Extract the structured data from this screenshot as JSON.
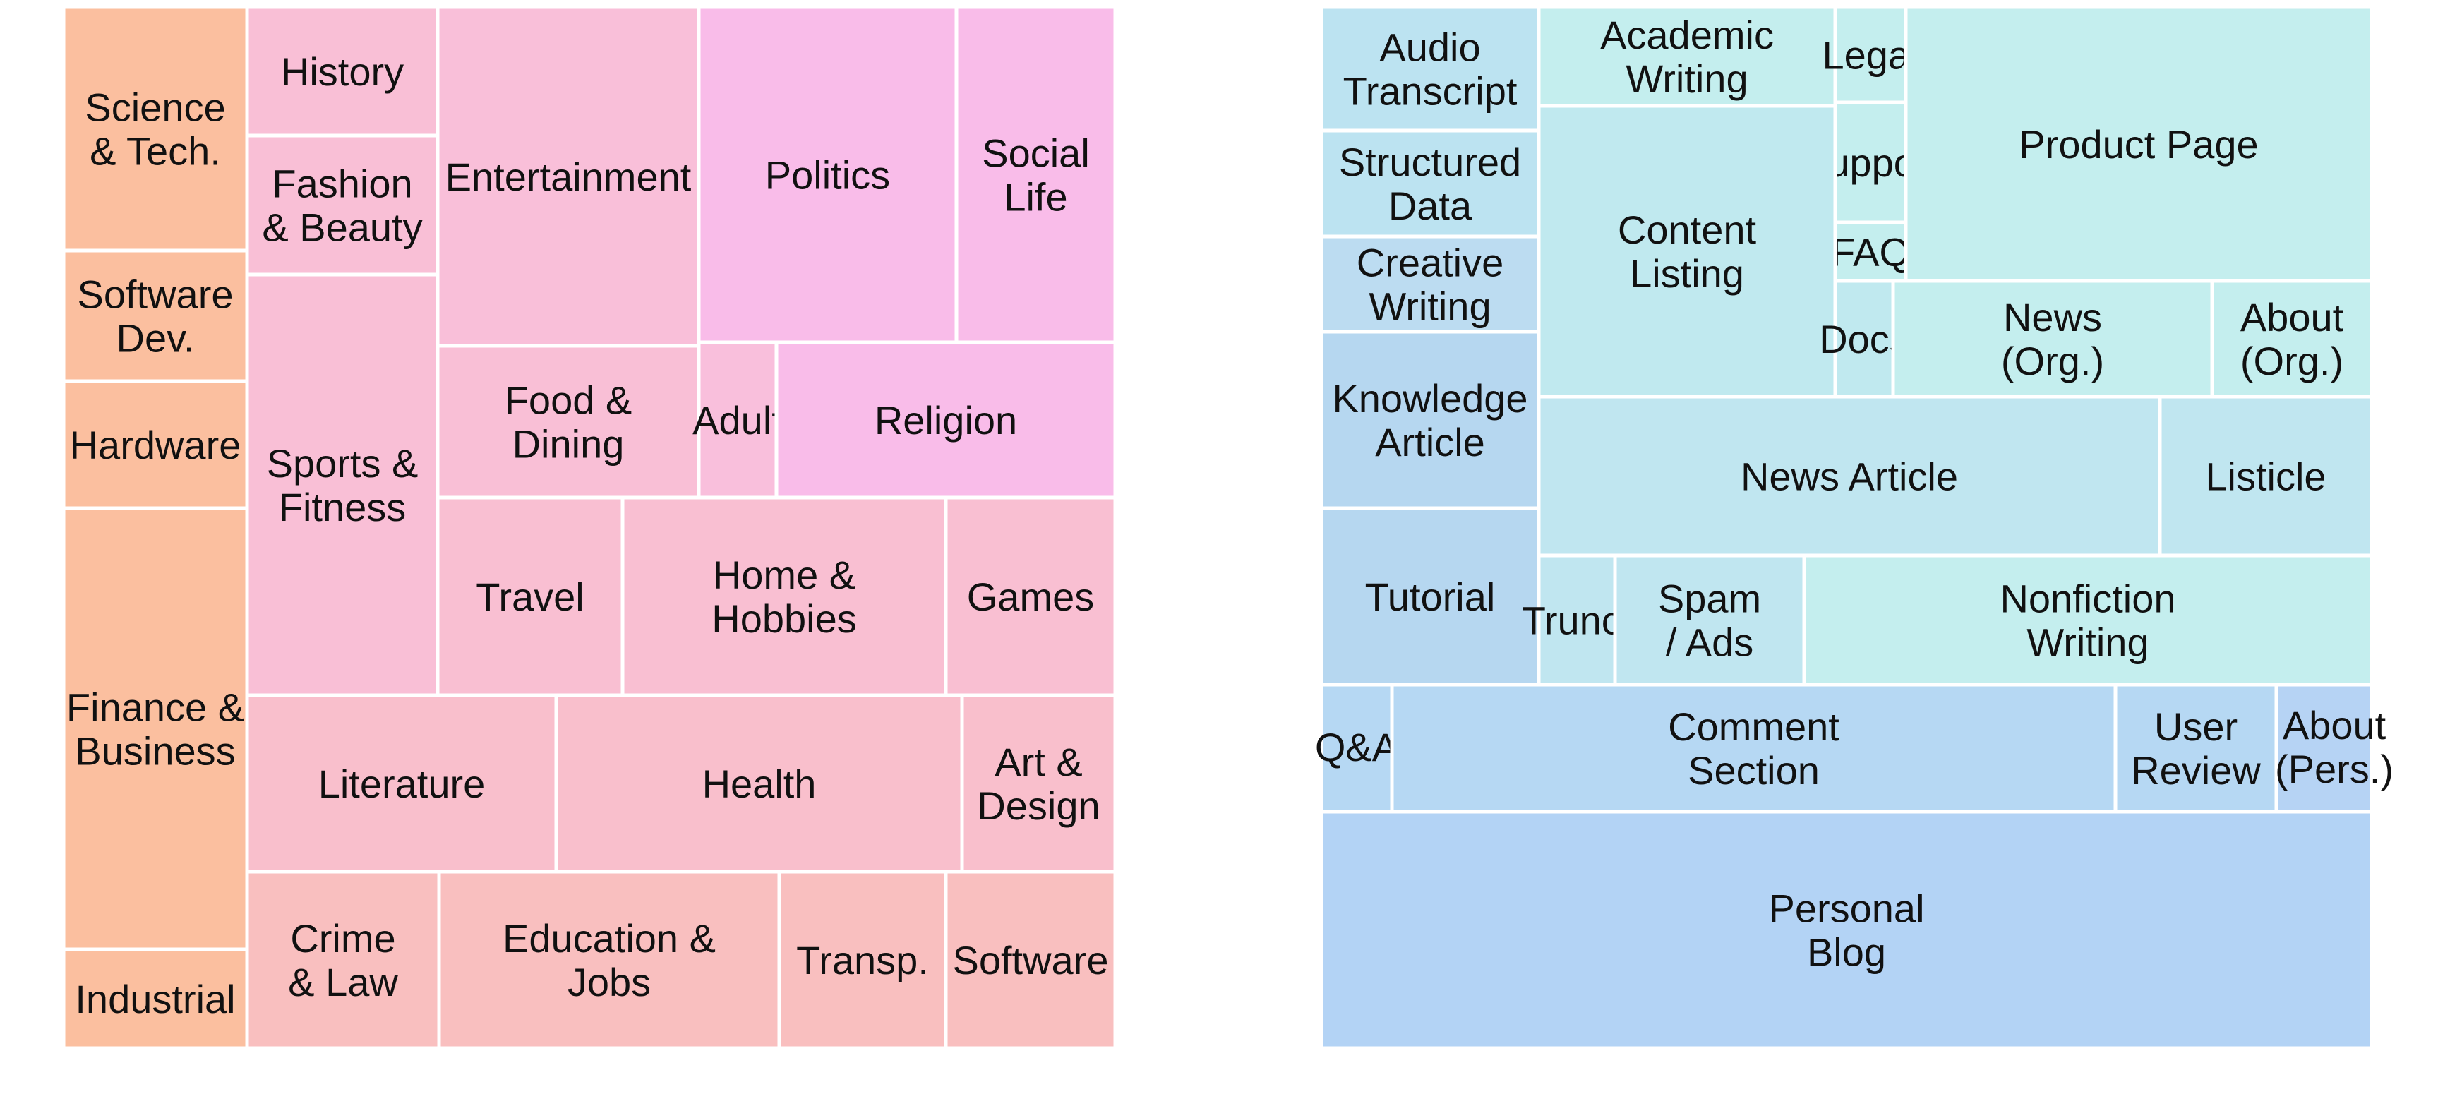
{
  "chart_data": [
    {
      "type": "treemap",
      "title": "",
      "tiles": [
        {
          "label": "Science\n& Tech.",
          "color": "#fbbf9f"
        },
        {
          "label": "Software\nDev.",
          "color": "#fbbf9f"
        },
        {
          "label": "Hardware",
          "color": "#fbbf9f"
        },
        {
          "label": "Finance &\nBusiness",
          "color": "#fbbf9f"
        },
        {
          "label": "Industrial",
          "color": "#fbbf9f"
        },
        {
          "label": "History",
          "color": "#f9bfd6"
        },
        {
          "label": "Fashion\n& Beauty",
          "color": "#f9bfd6"
        },
        {
          "label": "Sports &\nFitness",
          "color": "#f9bfd6"
        },
        {
          "label": "Entertainment",
          "color": "#f9bfd9"
        },
        {
          "label": "Politics",
          "color": "#f9bce9"
        },
        {
          "label": "Social\nLife",
          "color": "#f9bce9"
        },
        {
          "label": "Food &\nDining",
          "color": "#f9bfd6"
        },
        {
          "label": "Adult",
          "color": "#f9bfdc"
        },
        {
          "label": "Religion",
          "color": "#f9bce9"
        },
        {
          "label": "Travel",
          "color": "#f9bfd2"
        },
        {
          "label": "Home &\nHobbies",
          "color": "#f9bfd2"
        },
        {
          "label": "Games",
          "color": "#f9bfd2"
        },
        {
          "label": "Literature",
          "color": "#f9bfcc"
        },
        {
          "label": "Health",
          "color": "#f9bfcc"
        },
        {
          "label": "Art &\nDesign",
          "color": "#f9bfcc"
        },
        {
          "label": "Crime\n& Law",
          "color": "#f9bfbf"
        },
        {
          "label": "Education &\nJobs",
          "color": "#f9bfbf"
        },
        {
          "label": "Transp.",
          "color": "#f9bfbf"
        },
        {
          "label": "Software",
          "color": "#f9bfbf"
        }
      ]
    },
    {
      "type": "treemap",
      "title": "",
      "tiles": [
        {
          "label": "Audio\nTranscript",
          "color": "#bce3f1"
        },
        {
          "label": "Structured\nData",
          "color": "#bce3f1"
        },
        {
          "label": "Creative\nWriting",
          "color": "#bcdcf1"
        },
        {
          "label": "Knowledge\nArticle",
          "color": "#b6d7f0"
        },
        {
          "label": "Tutorial",
          "color": "#b6d7f0"
        },
        {
          "label": "Academic\nWriting",
          "color": "#c4eeee"
        },
        {
          "label": "Legal",
          "color": "#c4eeee"
        },
        {
          "label": "Support",
          "color": "#c4eeee"
        },
        {
          "label": "FAQ",
          "color": "#c4eeee"
        },
        {
          "label": "Product Page",
          "color": "#c4eeee"
        },
        {
          "label": "Content\nListing",
          "color": "#c0e9ef"
        },
        {
          "label": "Docs",
          "color": "#c0e9ef"
        },
        {
          "label": "News\n(Org.)",
          "color": "#c4eeee"
        },
        {
          "label": "About\n(Org.)",
          "color": "#c4eeee"
        },
        {
          "label": "News Article",
          "color": "#c0e6f0"
        },
        {
          "label": "Listicle",
          "color": "#c0e6f0"
        },
        {
          "label": "Trunc.",
          "color": "#c0e6f0"
        },
        {
          "label": "Spam\n/ Ads",
          "color": "#c0e6f0"
        },
        {
          "label": "Nonfiction\nWriting",
          "color": "#c4eeee"
        },
        {
          "label": "Q&A",
          "color": "#b6d8f3"
        },
        {
          "label": "Comment\nSection",
          "color": "#b6d8f3"
        },
        {
          "label": "User\nReview",
          "color": "#b6d8f3"
        },
        {
          "label": "About\n(Pers.)",
          "color": "#b6d3f4"
        },
        {
          "label": "Personal\nBlog",
          "color": "#b3d3f5"
        }
      ]
    }
  ]
}
